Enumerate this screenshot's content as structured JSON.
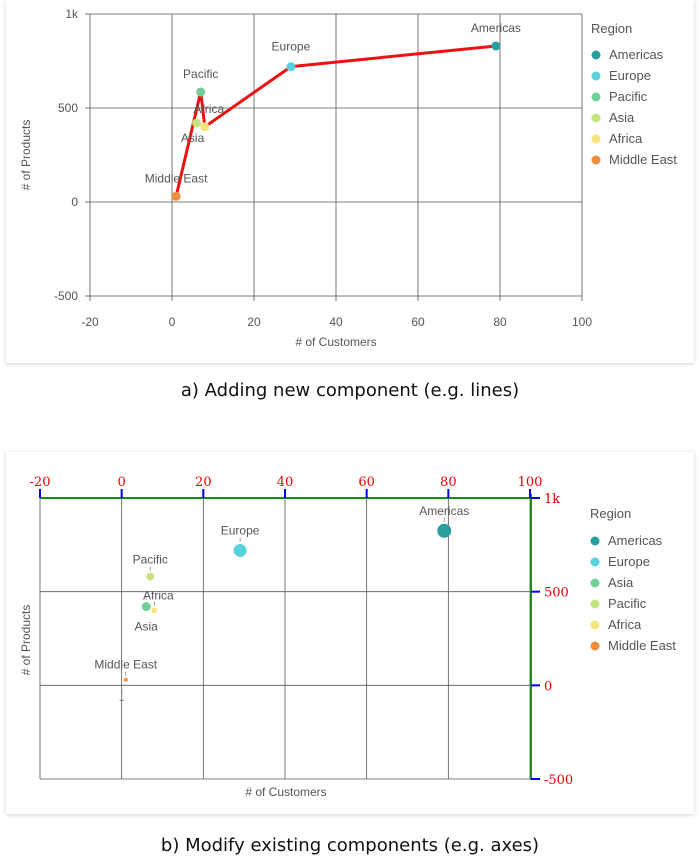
{
  "captions": {
    "a": "a) Adding new component (e.g. lines)",
    "b": "b) Modify existing components (e.g. axes)"
  },
  "chart_data": [
    {
      "type": "scatter",
      "xlabel": "# of Customers",
      "ylabel": "# of Products",
      "xlim": [
        -20,
        100
      ],
      "ylim": [
        -500,
        1000
      ],
      "x_ticks": [
        "-20",
        "0",
        "20",
        "40",
        "60",
        "80",
        "100"
      ],
      "y_ticks": [
        "1k",
        "500",
        "0",
        "-500"
      ],
      "grid": true,
      "legend_title": "Region",
      "legend_position": "right",
      "series": [
        {
          "name": "Americas",
          "color": "#2a9d9f",
          "x": 79,
          "y": 830
        },
        {
          "name": "Europe",
          "color": "#5bd0dd",
          "x": 29,
          "y": 720
        },
        {
          "name": "Pacific",
          "color": "#6fd196",
          "x": 7,
          "y": 585
        },
        {
          "name": "Asia",
          "color": "#c3e47e",
          "x": 6,
          "y": 420
        },
        {
          "name": "Africa",
          "color": "#f4e57f",
          "x": 8,
          "y": 400
        },
        {
          "name": "Middle East",
          "color": "#ec8f3b",
          "x": 1,
          "y": 30
        }
      ],
      "added_line": {
        "color": "#ee1111",
        "order": [
          "Middle East",
          "Pacific",
          "Africa",
          "Europe",
          "Americas"
        ]
      }
    },
    {
      "type": "scatter",
      "xlabel": "# of Customers",
      "ylabel": "# of Products",
      "xlim": [
        -20,
        100
      ],
      "ylim": [
        -500,
        1000
      ],
      "x_ticks": [
        "-20",
        "0",
        "20",
        "40",
        "60",
        "80",
        "100"
      ],
      "y_ticks": [
        "1k",
        "500",
        "0",
        "-500"
      ],
      "grid": true,
      "x_axis_position": "top",
      "y_axis_position": "right",
      "axis_color": "#1a8a1a",
      "tick_color": "#0000ee",
      "tick_label_color": "#ee0000",
      "legend_title": "Region",
      "legend_position": "right",
      "series": [
        {
          "name": "Americas",
          "color": "#2a9d9f",
          "x": 79,
          "y": 825,
          "size": 7
        },
        {
          "name": "Europe",
          "color": "#5bd0dd",
          "x": 29,
          "y": 720,
          "size": 6.5
        },
        {
          "name": "Asia",
          "color": "#6fd196",
          "x": 6,
          "y": 420,
          "size": 4.5
        },
        {
          "name": "Pacific",
          "color": "#c3e47e",
          "x": 7,
          "y": 580,
          "size": 4
        },
        {
          "name": "Africa",
          "color": "#f4e57f",
          "x": 8,
          "y": 400,
          "size": 3
        },
        {
          "name": "Middle East",
          "color": "#ec8f3b",
          "x": 1,
          "y": 30,
          "size": 2
        }
      ]
    }
  ]
}
